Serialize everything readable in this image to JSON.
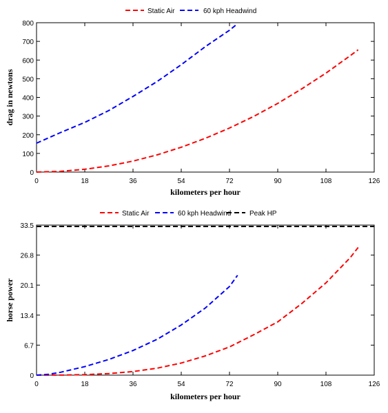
{
  "chart_data": [
    {
      "type": "line",
      "xlabel": "kilometers per hour",
      "ylabel": "drag in newtons",
      "xlim": [
        0,
        126
      ],
      "ylim": [
        0,
        800
      ],
      "xticks": [
        0,
        18,
        36,
        54,
        72,
        90,
        108,
        126
      ],
      "yticks": [
        0,
        100,
        200,
        300,
        400,
        500,
        600,
        700,
        800
      ],
      "legend_position": "top",
      "grid": false,
      "series": [
        {
          "name": "Static Air",
          "color": "#ff0000",
          "style": "dashed",
          "x": [
            0,
            9,
            18,
            27,
            36,
            45,
            54,
            63,
            72,
            81,
            90,
            99,
            108,
            117,
            120
          ],
          "y": [
            0,
            4,
            15,
            33,
            59,
            92,
            133,
            181,
            236,
            298,
            368,
            446,
            530,
            623,
            655
          ]
        },
        {
          "name": "60 kph Headwind",
          "color": "#0000ff",
          "style": "dashed",
          "x": [
            0,
            9,
            18,
            27,
            36,
            45,
            54,
            63,
            72,
            75
          ],
          "y": [
            155,
            212,
            266,
            330,
            405,
            485,
            575,
            672,
            760,
            795
          ]
        }
      ]
    },
    {
      "type": "line",
      "xlabel": "kilometers per hour",
      "ylabel": "horse power",
      "xlim": [
        0,
        126
      ],
      "ylim": [
        0,
        33.5
      ],
      "xticks": [
        0,
        18,
        36,
        54,
        72,
        90,
        108,
        126
      ],
      "yticks": [
        0,
        6.7,
        13.4,
        20.1,
        26.8,
        33.5
      ],
      "yticklabels": [
        "0",
        "6.7",
        "13.4",
        "20.1",
        "26.8",
        "33.5"
      ],
      "legend_position": "top",
      "grid": false,
      "series": [
        {
          "name": "Static Air",
          "color": "#ff0000",
          "style": "dashed",
          "x": [
            0,
            9,
            18,
            27,
            36,
            45,
            54,
            63,
            72,
            81,
            90,
            99,
            108,
            117,
            120
          ],
          "y": [
            0,
            0.02,
            0.1,
            0.35,
            0.8,
            1.55,
            2.7,
            4.3,
            6.3,
            9.0,
            11.9,
            16.0,
            20.6,
            26.2,
            28.5
          ]
        },
        {
          "name": "60 kph Headwind",
          "color": "#0000ff",
          "style": "dashed",
          "x": [
            0,
            4.5,
            9,
            18,
            27,
            36,
            45,
            54,
            63,
            72,
            75
          ],
          "y": [
            0,
            0.2,
            0.65,
            1.9,
            3.5,
            5.5,
            8.0,
            11.2,
            15.0,
            19.8,
            22.3
          ]
        },
        {
          "name": "Peak HP",
          "color": "#000000",
          "style": "dashed",
          "x": [
            0,
            126
          ],
          "y": [
            33.2,
            33.2
          ]
        }
      ]
    }
  ]
}
